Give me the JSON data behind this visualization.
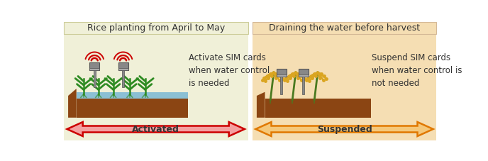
{
  "fig_width": 6.88,
  "fig_height": 2.27,
  "dpi": 100,
  "bg_color": "#ffffff",
  "left_panel": {
    "bg_color": "#f0f0d8",
    "title": "Rice planting from April to May",
    "title_fontsize": 9,
    "description": "Activate SIM cards\nwhen water control\nis needed",
    "desc_fontsize": 8.5,
    "desc_color": "#333333"
  },
  "right_panel": {
    "bg_color": "#f5deb3",
    "title": "Draining the water before harvest",
    "title_fontsize": 9,
    "description": "Suspend SIM cards\nwhen water control is\nnot needed",
    "desc_fontsize": 8.5,
    "desc_color": "#333333"
  },
  "arrow_left": {
    "label": "Activated",
    "fill_color": "#f4a0a0",
    "edge_color": "#cc0000",
    "label_color": "#333333",
    "fontsize": 9
  },
  "arrow_right": {
    "label": "Suspended",
    "fill_color": "#f5c87a",
    "edge_color": "#e07800",
    "label_color": "#333333",
    "fontsize": 9
  },
  "soil_color": "#8B4513",
  "water_color": "#7ab8d4",
  "plant_color": "#2e8b22",
  "rice_color": "#DAA520",
  "stem_color": "#4a7a20",
  "device_color": "#888888",
  "device_light_color": "#aaaaaa",
  "signal_color": "#cc0000"
}
